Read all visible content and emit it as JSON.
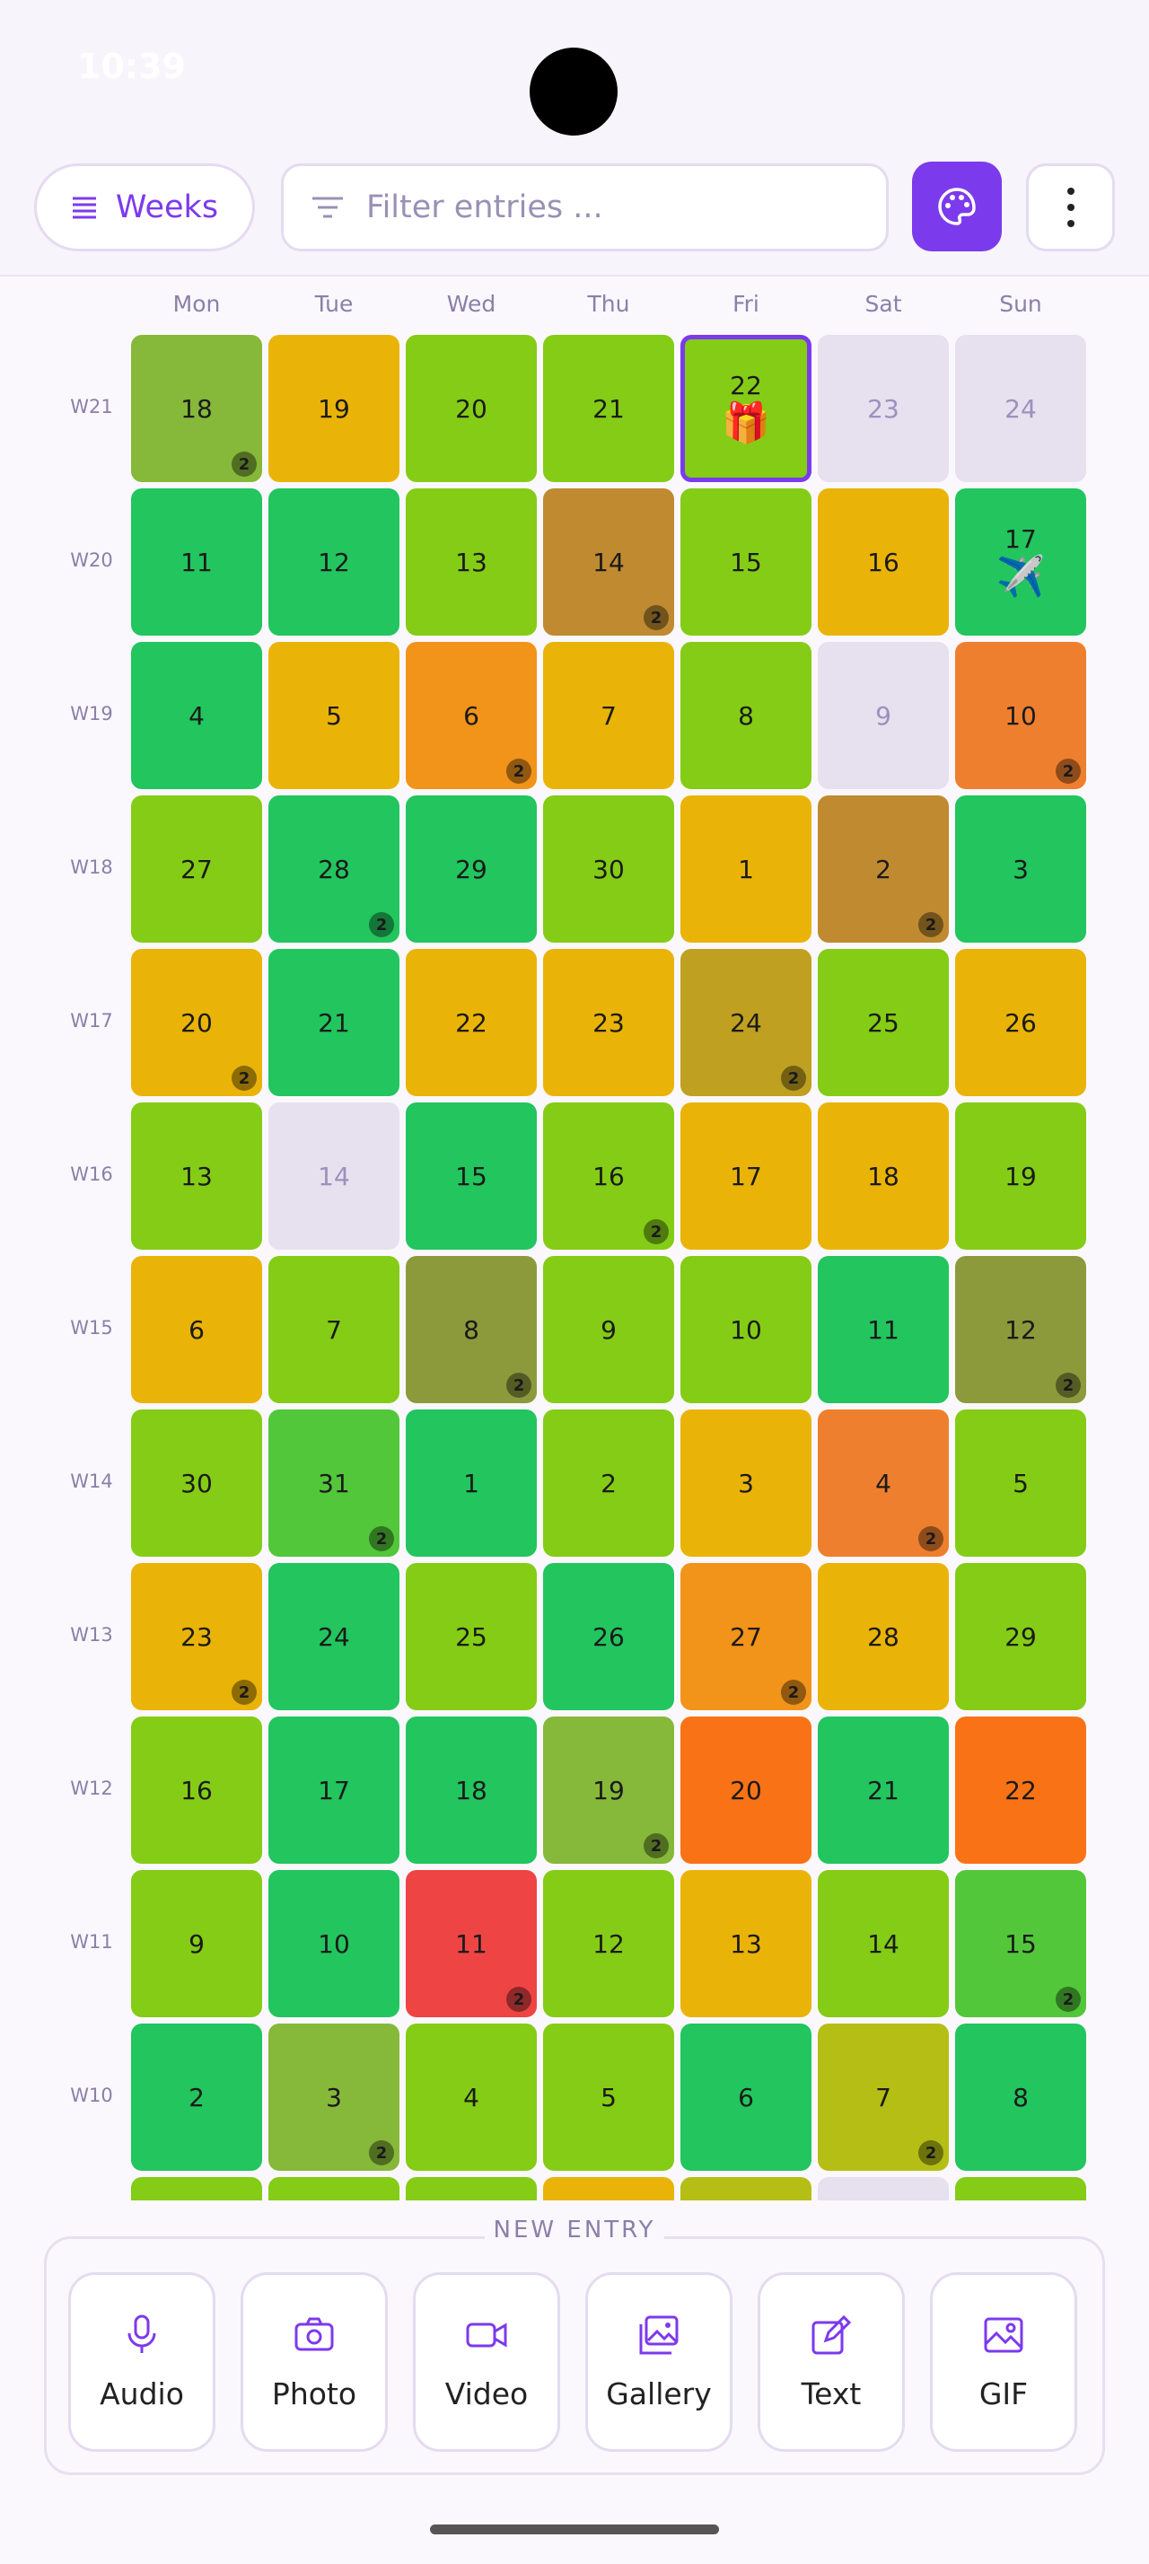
{
  "status_bar": {
    "time": "10:39"
  },
  "toolbar": {
    "view_button": "Weeks",
    "filter_placeholder": "Filter entries ..."
  },
  "calendar": {
    "day_headers": [
      "Mon",
      "Tue",
      "Wed",
      "Thu",
      "Fri",
      "Sat",
      "Sun"
    ],
    "weeks": [
      {
        "label": "W21",
        "days": [
          {
            "day": 18,
            "color": "#86b83a",
            "badge": "2"
          },
          {
            "day": 19,
            "color": "#eab308"
          },
          {
            "day": 20,
            "color": "#84cc16"
          },
          {
            "day": 21,
            "color": "#84cc16"
          },
          {
            "day": 22,
            "color": "#84cc16",
            "icon": "🎁",
            "selected": true
          },
          {
            "day": 23,
            "color": "#e7e0ef",
            "text_color": "#9d90bd"
          },
          {
            "day": 24,
            "color": "#e7e0ef",
            "text_color": "#9d90bd"
          }
        ]
      },
      {
        "label": "W20",
        "days": [
          {
            "day": 11,
            "color": "#22c55e"
          },
          {
            "day": 12,
            "color": "#22c55e"
          },
          {
            "day": 13,
            "color": "#84cc16"
          },
          {
            "day": 14,
            "color": "#c08a30",
            "badge": "2"
          },
          {
            "day": 15,
            "color": "#84cc16"
          },
          {
            "day": 16,
            "color": "#eab308"
          },
          {
            "day": 17,
            "color": "#22c55e",
            "icon": "✈️"
          }
        ]
      },
      {
        "label": "W19",
        "days": [
          {
            "day": 4,
            "color": "#22c55e"
          },
          {
            "day": 5,
            "color": "#eab308"
          },
          {
            "day": 6,
            "color": "#f2931a",
            "badge": "2"
          },
          {
            "day": 7,
            "color": "#eab308"
          },
          {
            "day": 8,
            "color": "#84cc16"
          },
          {
            "day": 9,
            "color": "#e7e0ef",
            "text_color": "#9d90bd"
          },
          {
            "day": 10,
            "color": "#ee7f2e",
            "badge": "2"
          }
        ]
      },
      {
        "label": "W18",
        "days": [
          {
            "day": 27,
            "color": "#84cc16"
          },
          {
            "day": 28,
            "color": "#22c55e",
            "badge": "2"
          },
          {
            "day": 29,
            "color": "#22c55e"
          },
          {
            "day": 30,
            "color": "#84cc16"
          },
          {
            "day": 1,
            "color": "#eab308"
          },
          {
            "day": 2,
            "color": "#c08a30",
            "badge": "2"
          },
          {
            "day": 3,
            "color": "#22c55e"
          }
        ]
      },
      {
        "label": "W17",
        "days": [
          {
            "day": 20,
            "color": "#eab308",
            "badge": "2"
          },
          {
            "day": 21,
            "color": "#22c55e"
          },
          {
            "day": 22,
            "color": "#eab308"
          },
          {
            "day": 23,
            "color": "#eab308"
          },
          {
            "day": 24,
            "color": "#c0a020",
            "badge": "2"
          },
          {
            "day": 25,
            "color": "#84cc16"
          },
          {
            "day": 26,
            "color": "#eab308"
          }
        ]
      },
      {
        "label": "W16",
        "days": [
          {
            "day": 13,
            "color": "#84cc16"
          },
          {
            "day": 14,
            "color": "#e7e0ef",
            "text_color": "#9d90bd"
          },
          {
            "day": 15,
            "color": "#22c55e"
          },
          {
            "day": 16,
            "color": "#84cc16",
            "badge": "2"
          },
          {
            "day": 17,
            "color": "#eab308"
          },
          {
            "day": 18,
            "color": "#eab308"
          },
          {
            "day": 19,
            "color": "#84cc16"
          }
        ]
      },
      {
        "label": "W15",
        "days": [
          {
            "day": 6,
            "color": "#eab308"
          },
          {
            "day": 7,
            "color": "#84cc16"
          },
          {
            "day": 8,
            "color": "#8c9a3c",
            "badge": "2"
          },
          {
            "day": 9,
            "color": "#84cc16"
          },
          {
            "day": 10,
            "color": "#84cc16"
          },
          {
            "day": 11,
            "color": "#22c55e"
          },
          {
            "day": 12,
            "color": "#8c9a3c",
            "badge": "2"
          }
        ]
      },
      {
        "label": "W14",
        "days": [
          {
            "day": 30,
            "color": "#84cc16"
          },
          {
            "day": 31,
            "color": "#52c73a",
            "badge": "2"
          },
          {
            "day": 1,
            "color": "#22c55e"
          },
          {
            "day": 2,
            "color": "#84cc16"
          },
          {
            "day": 3,
            "color": "#eab308"
          },
          {
            "day": 4,
            "color": "#ee7f2e",
            "badge": "2"
          },
          {
            "day": 5,
            "color": "#84cc16"
          }
        ]
      },
      {
        "label": "W13",
        "days": [
          {
            "day": 23,
            "color": "#eab308",
            "badge": "2"
          },
          {
            "day": 24,
            "color": "#22c55e"
          },
          {
            "day": 25,
            "color": "#84cc16"
          },
          {
            "day": 26,
            "color": "#22c55e"
          },
          {
            "day": 27,
            "color": "#f2931a",
            "badge": "2"
          },
          {
            "day": 28,
            "color": "#eab308"
          },
          {
            "day": 29,
            "color": "#84cc16"
          }
        ]
      },
      {
        "label": "W12",
        "days": [
          {
            "day": 16,
            "color": "#84cc16"
          },
          {
            "day": 17,
            "color": "#22c55e"
          },
          {
            "day": 18,
            "color": "#22c55e"
          },
          {
            "day": 19,
            "color": "#86b83a",
            "badge": "2"
          },
          {
            "day": 20,
            "color": "#f97316"
          },
          {
            "day": 21,
            "color": "#22c55e"
          },
          {
            "day": 22,
            "color": "#f97316"
          }
        ]
      },
      {
        "label": "W11",
        "days": [
          {
            "day": 9,
            "color": "#84cc16"
          },
          {
            "day": 10,
            "color": "#22c55e"
          },
          {
            "day": 11,
            "color": "#ef4444",
            "badge": "2"
          },
          {
            "day": 12,
            "color": "#84cc16"
          },
          {
            "day": 13,
            "color": "#eab308"
          },
          {
            "day": 14,
            "color": "#84cc16"
          },
          {
            "day": 15,
            "color": "#52c73a",
            "badge": "2"
          }
        ]
      },
      {
        "label": "W10",
        "days": [
          {
            "day": 2,
            "color": "#22c55e"
          },
          {
            "day": 3,
            "color": "#86b83a",
            "badge": "2"
          },
          {
            "day": 4,
            "color": "#84cc16"
          },
          {
            "day": 5,
            "color": "#84cc16"
          },
          {
            "day": 6,
            "color": "#22c55e"
          },
          {
            "day": 7,
            "color": "#b5be14",
            "badge": "2"
          },
          {
            "day": 8,
            "color": "#22c55e"
          }
        ]
      }
    ]
  },
  "new_entry": {
    "title": "NEW ENTRY",
    "buttons": [
      "Audio",
      "Photo",
      "Video",
      "Gallery",
      "Text",
      "GIF"
    ]
  }
}
